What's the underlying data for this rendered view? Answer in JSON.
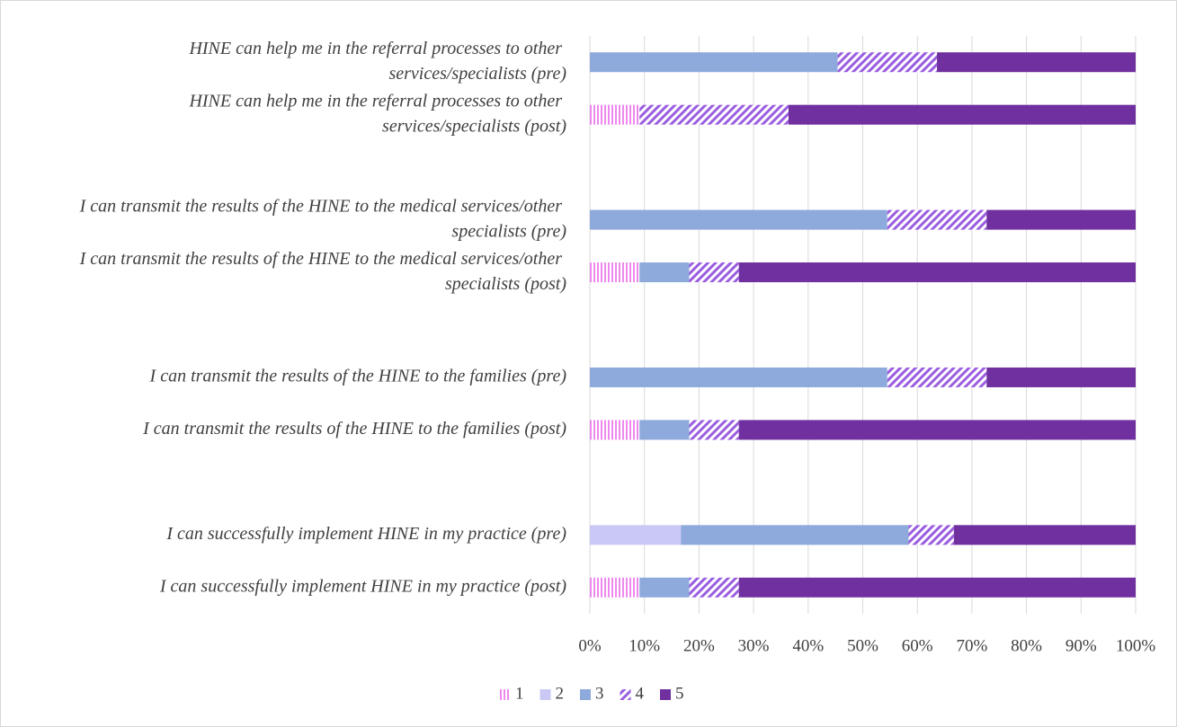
{
  "chart_data": {
    "type": "stacked_barh",
    "categories": [
      "HINE can help me in the referral processes to other services/specialists (pre)",
      "HINE can help me in the referral processes to other services/specialists (post)",
      null,
      "I can transmit the results of the HINE to the medical services/other specialists (pre)",
      "I can transmit the results of the HINE to the medical services/other specialists (post)",
      null,
      "I can transmit the results of the HINE to the families (pre)",
      "I can transmit the results of the HINE to the families (post)",
      null,
      "I can successfully implement HINE in my practice (pre)",
      "I can successfully implement HINE in my practice (post)"
    ],
    "series": [
      {
        "name": "1",
        "color": "#ee88ee",
        "pattern": "vertical",
        "values": [
          0,
          9.1,
          null,
          0,
          9.1,
          null,
          0,
          9.1,
          null,
          0,
          9.1
        ]
      },
      {
        "name": "2",
        "color": "#cac8f4",
        "values": [
          0,
          0,
          null,
          0,
          0,
          null,
          0,
          0,
          null,
          16.7,
          0
        ]
      },
      {
        "name": "3",
        "color": "#8eaadc",
        "values": [
          45.4,
          0,
          null,
          54.5,
          9.1,
          null,
          54.5,
          9.1,
          null,
          41.7,
          9.1
        ]
      },
      {
        "name": "4",
        "color": "#9b5de0",
        "pattern": "diagonal",
        "values": [
          18.2,
          27.3,
          null,
          18.2,
          9.1,
          null,
          18.2,
          9.1,
          null,
          8.3,
          9.1
        ]
      },
      {
        "name": "5",
        "color": "#7030a0",
        "values": [
          36.4,
          63.6,
          null,
          27.3,
          72.7,
          null,
          27.3,
          72.7,
          null,
          33.3,
          72.7
        ]
      }
    ],
    "xlim": [
      0,
      100
    ],
    "xticks": [
      {
        "value": 0,
        "label": "0%"
      },
      {
        "value": 10,
        "label": "10%"
      },
      {
        "value": 20,
        "label": "20%"
      },
      {
        "value": 30,
        "label": "30%"
      },
      {
        "value": 40,
        "label": "40%"
      },
      {
        "value": 50,
        "label": "50%"
      },
      {
        "value": 60,
        "label": "60%"
      },
      {
        "value": 70,
        "label": "70%"
      },
      {
        "value": 80,
        "label": "80%"
      },
      {
        "value": 90,
        "label": "90%"
      },
      {
        "value": 100,
        "label": "100%"
      }
    ],
    "grid": true,
    "legend": "bottom"
  }
}
